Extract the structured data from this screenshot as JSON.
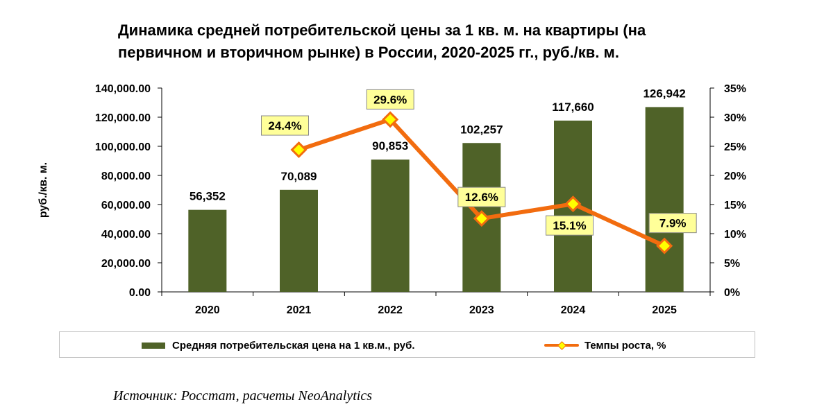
{
  "title_lines": [
    "Динамика средней потребительской цены за 1 кв. м. на квартиры (на",
    "первичном и вторичном рынке) в России, 2020-2025 гг., руб./кв. м."
  ],
  "source": "Источник: Росстат, расчеты NeoAnalytics",
  "colors": {
    "bar": "#4f6228",
    "line": "#f26c0f",
    "marker_fill": "#ffff00",
    "label_bg": "#ffff99",
    "axis": "#000000"
  },
  "chart_data": {
    "type": "bar",
    "categories": [
      "2020",
      "2021",
      "2022",
      "2023",
      "2024",
      "2025"
    ],
    "ylabel": "руб./кв. м.",
    "ylim": [
      0,
      140000
    ],
    "yticks": [
      "0.00",
      "20,000.00",
      "40,000.00",
      "60,000.00",
      "80,000.00",
      "100,000.00",
      "120,000.00",
      "140,000.00"
    ],
    "y2lim": [
      0,
      35
    ],
    "y2ticks": [
      "0%",
      "5%",
      "10%",
      "15%",
      "20%",
      "25%",
      "30%",
      "35%"
    ],
    "grid": false,
    "legend_position": "bottom",
    "series": [
      {
        "name": "Средняя потребительская цена на 1 кв.м., руб.",
        "type": "bar",
        "axis": "left",
        "values": [
          56352,
          70089,
          90853,
          102257,
          117660,
          126942
        ],
        "labels": [
          "56,352",
          "70,089",
          "90,853",
          "102,257",
          "117,660",
          "126,942"
        ]
      },
      {
        "name": "Темпы роста, %",
        "type": "line",
        "axis": "right",
        "values": [
          null,
          24.4,
          29.6,
          12.6,
          15.1,
          7.9
        ],
        "labels": [
          "",
          "24.4%",
          "29.6%",
          "12.6%",
          "15.1%",
          "7.9%"
        ]
      }
    ]
  }
}
